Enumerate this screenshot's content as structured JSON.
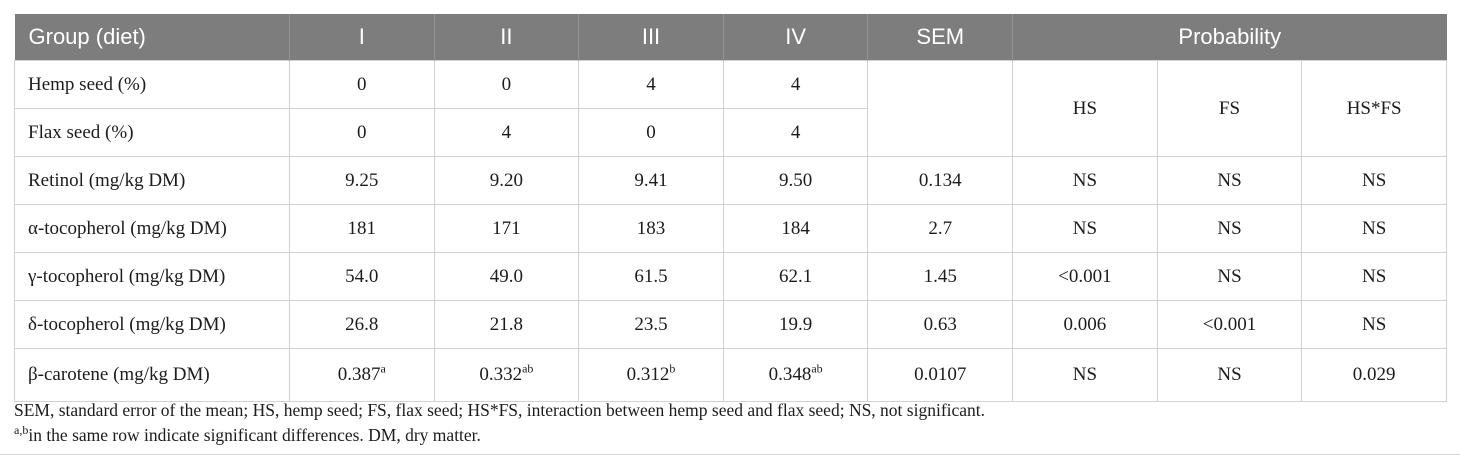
{
  "table": {
    "header": {
      "group_label": "Group (diet)",
      "diet_columns": [
        "I",
        "II",
        "III",
        "IV"
      ],
      "sem_label": "SEM",
      "probability_label": "Probability"
    },
    "probability_subcolumns": [
      "HS",
      "FS",
      "HS*FS"
    ],
    "diet_rows": [
      {
        "label": "Hemp seed (%)",
        "values": [
          "0",
          "0",
          "4",
          "4"
        ]
      },
      {
        "label": "Flax seed (%)",
        "values": [
          "0",
          "4",
          "0",
          "4"
        ]
      }
    ],
    "data_rows": [
      {
        "label": "Retinol (mg/kg DM)",
        "values": [
          "9.25",
          "9.20",
          "9.41",
          "9.50"
        ],
        "sem": "0.134",
        "hs": "NS",
        "fs": "NS",
        "hsfs": "NS"
      },
      {
        "label": "α-tocopherol (mg/kg DM)",
        "values": [
          "181",
          "171",
          "183",
          "184"
        ],
        "sem": "2.7",
        "hs": "NS",
        "fs": "NS",
        "hsfs": "NS"
      },
      {
        "label": "γ-tocopherol (mg/kg DM)",
        "values": [
          "54.0",
          "49.0",
          "61.5",
          "62.1"
        ],
        "sem": "1.45",
        "hs": "<0.001",
        "fs": "NS",
        "hsfs": "NS"
      },
      {
        "label": "δ-tocopherol (mg/kg DM)",
        "values": [
          "26.8",
          "21.8",
          "23.5",
          "19.9"
        ],
        "sem": "0.63",
        "hs": "0.006",
        "fs": "<0.001",
        "hsfs": "NS"
      },
      {
        "label": "β-carotene (mg/kg DM)",
        "values": [
          {
            "v": "0.387",
            "sup": "a"
          },
          {
            "v": "0.332",
            "sup": "ab"
          },
          {
            "v": "0.312",
            "sup": "b"
          },
          {
            "v": "0.348",
            "sup": "ab"
          }
        ],
        "sem": "0.0107",
        "hs": "NS",
        "fs": "NS",
        "hsfs": "0.029",
        "tall": true
      }
    ]
  },
  "footnotes": {
    "line1": "SEM, standard error of the mean; HS, hemp seed; FS, flax seed; HS*FS, interaction between hemp seed and flax seed; NS, not significant.",
    "line2_sup": "a,b",
    "line2_text": "in the same row indicate significant differences. DM, dry matter."
  },
  "colors": {
    "header_bg": "#7d7d7d",
    "header_text": "#ffffff",
    "grid_border": "#d2d2d2",
    "body_text": "#1c1c1c"
  }
}
